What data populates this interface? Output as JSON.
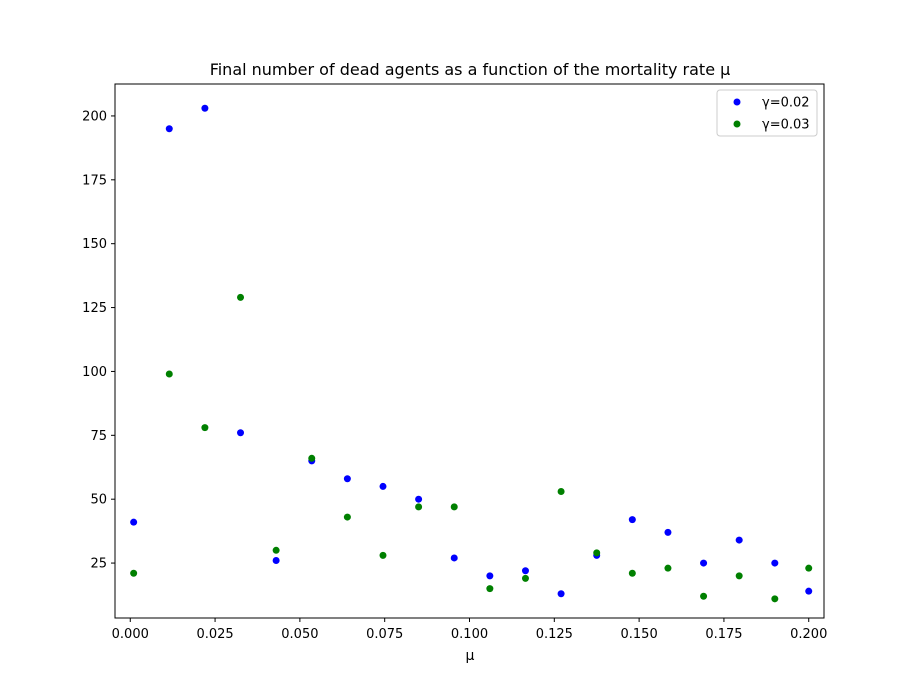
{
  "chart_data": {
    "type": "scatter",
    "title": "Final number of dead agents as a function of the mortality rate μ",
    "xlabel": "μ",
    "ylabel": "",
    "xlim": [
      -0.0045,
      0.2045
    ],
    "ylim": [
      3.5,
      212.5
    ],
    "x_ticks": [
      "0.000",
      "0.025",
      "0.050",
      "0.075",
      "0.100",
      "0.125",
      "0.150",
      "0.175",
      "0.200"
    ],
    "x_tick_values": [
      0,
      0.025,
      0.05,
      0.075,
      0.1,
      0.125,
      0.15,
      0.175,
      0.2
    ],
    "y_ticks": [
      "25",
      "50",
      "75",
      "100",
      "125",
      "150",
      "175",
      "200"
    ],
    "y_tick_values": [
      25,
      50,
      75,
      100,
      125,
      150,
      175,
      200
    ],
    "grid": false,
    "legend_position": "top-right",
    "x": [
      0.001,
      0.0115,
      0.022,
      0.0325,
      0.043,
      0.0535,
      0.064,
      0.0745,
      0.085,
      0.0955,
      0.106,
      0.1165,
      0.127,
      0.1375,
      0.148,
      0.1585,
      0.169,
      0.1795,
      0.19,
      0.2
    ],
    "series": [
      {
        "name": "γ=0.02",
        "color": "#0000ff",
        "values": [
          41,
          195,
          203,
          76,
          26,
          65,
          58,
          55,
          50,
          27,
          20,
          22,
          13,
          28,
          42,
          37,
          25,
          34,
          25,
          14
        ]
      },
      {
        "name": "γ=0.03",
        "color": "#008000",
        "values": [
          21,
          99,
          78,
          129,
          30,
          66,
          43,
          28,
          47,
          47,
          15,
          19,
          53,
          29,
          21,
          23,
          12,
          20,
          11,
          23
        ]
      }
    ]
  }
}
